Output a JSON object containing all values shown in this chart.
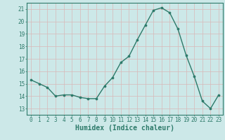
{
  "x": [
    0,
    1,
    2,
    3,
    4,
    5,
    6,
    7,
    8,
    9,
    10,
    11,
    12,
    13,
    14,
    15,
    16,
    17,
    18,
    19,
    20,
    21,
    22,
    23
  ],
  "y": [
    15.3,
    15.0,
    14.7,
    14.0,
    14.1,
    14.1,
    13.9,
    13.8,
    13.8,
    14.8,
    15.5,
    16.7,
    17.2,
    18.5,
    19.7,
    20.9,
    21.1,
    20.7,
    19.4,
    17.3,
    15.6,
    13.6,
    13.0,
    14.1
  ],
  "line_color": "#2d7a6a",
  "marker": "o",
  "markersize": 2.2,
  "linewidth": 1.0,
  "bg_color": "#cce8e8",
  "grid_color": "#d8b8b8",
  "xlabel": "Humidex (Indice chaleur)",
  "ylim": [
    12.5,
    21.5
  ],
  "xlim": [
    -0.5,
    23.5
  ],
  "yticks": [
    13,
    14,
    15,
    16,
    17,
    18,
    19,
    20,
    21
  ],
  "xticks": [
    0,
    1,
    2,
    3,
    4,
    5,
    6,
    7,
    8,
    9,
    10,
    11,
    12,
    13,
    14,
    15,
    16,
    17,
    18,
    19,
    20,
    21,
    22,
    23
  ],
  "tick_color": "#2d7a6a",
  "xlabel_fontsize": 7,
  "tick_fontsize": 5.5,
  "spine_color": "#2d7a6a"
}
